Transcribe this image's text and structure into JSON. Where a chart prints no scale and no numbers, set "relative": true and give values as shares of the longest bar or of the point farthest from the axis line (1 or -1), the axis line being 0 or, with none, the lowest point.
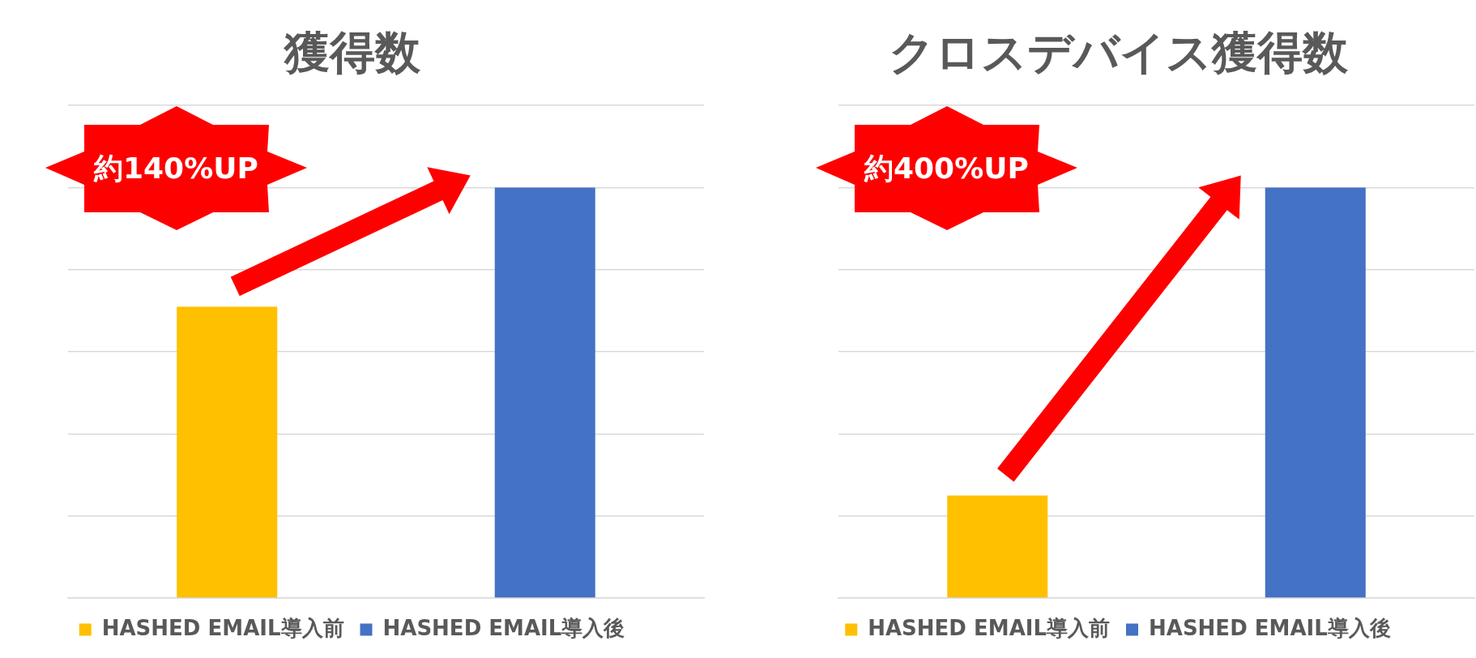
{
  "chart_data": [
    {
      "type": "bar",
      "title": "獲得数",
      "categories": [
        null,
        null
      ],
      "series": [
        {
          "name": "HASHED EMAIL導入前",
          "color": "#ffc000",
          "values": [
            0.71,
            null
          ]
        },
        {
          "name": "HASHED EMAIL導入後",
          "color": "#4472c4",
          "values": [
            null,
            1
          ]
        }
      ],
      "stacked": true,
      "relative": true,
      "grid": "y",
      "legend": "bottom",
      "tick_labels": false,
      "annotations": [
        "約140%UP"
      ]
    },
    {
      "type": "bar",
      "title": "クロスデバイス獲得数",
      "categories": [
        null,
        null
      ],
      "series": [
        {
          "name": "HASHED EMAIL導入前",
          "color": "#ffc000",
          "values": [
            0.25,
            null
          ]
        },
        {
          "name": "HASHED EMAIL導入後",
          "color": "#4472c4",
          "values": [
            null,
            1
          ]
        }
      ],
      "stacked": true,
      "relative": true,
      "grid": "y",
      "legend": "bottom",
      "tick_labels": false,
      "annotations": [
        "約400%UP"
      ]
    }
  ]
}
